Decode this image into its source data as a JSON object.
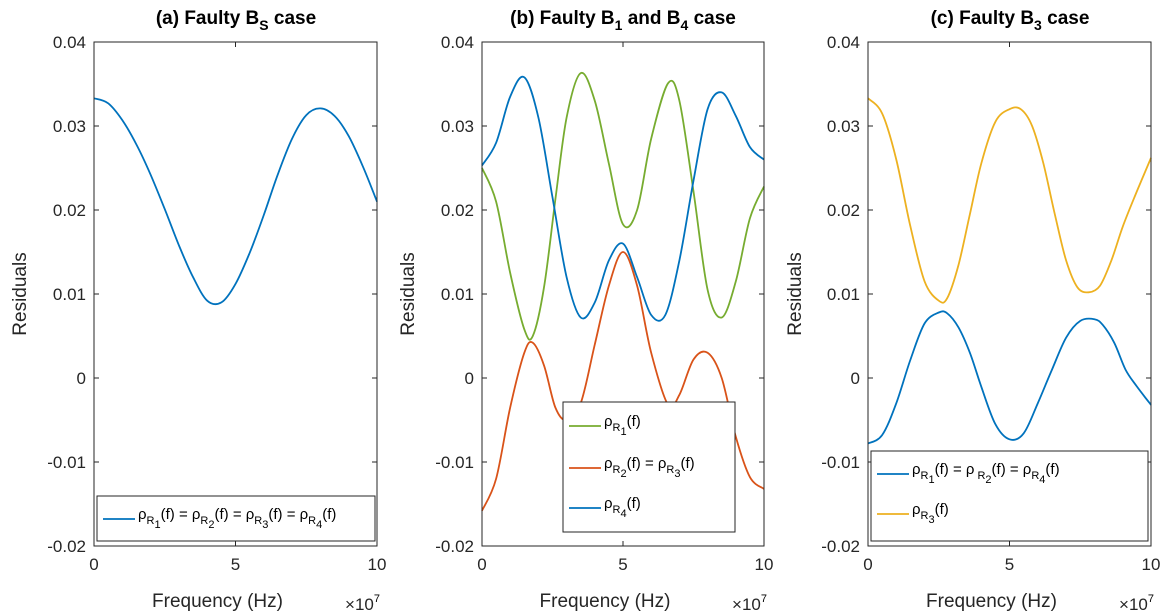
{
  "chart_data": [
    {
      "type": "line",
      "title": "(a) Faulty B_S case",
      "title_parts": [
        "(a) Faulty B",
        "S",
        " case"
      ],
      "xlabel": "Frequency (Hz)",
      "ylabel": "Residuals",
      "x_exponent": "×10",
      "x_exponent_power": "7",
      "xlim": [
        0,
        100000000
      ],
      "ylim": [
        -0.02,
        0.04
      ],
      "xticks": [
        0,
        50000000,
        100000000
      ],
      "xtick_labels": [
        "0",
        "5",
        "10"
      ],
      "yticks": [
        -0.02,
        -0.01,
        0,
        0.01,
        0.02,
        0.03,
        0.04
      ],
      "ytick_labels": [
        "-0.02",
        "-0.01",
        "0",
        "0.01",
        "0.02",
        "0.03",
        "0.04"
      ],
      "grid": false,
      "legend_position": "bottom",
      "series": [
        {
          "name": "ρR1(f) = ρR2(f) = ρR3(f) = ρR4(f)",
          "legend_parts": [
            "ρ",
            "R",
            "1",
            "(f) = ρ",
            "R",
            "2",
            "(f) = ρ",
            "R",
            "3",
            "(f) = ρ",
            "R",
            "4",
            "(f)"
          ],
          "color": "#0072BD",
          "x": [
            0,
            5000000,
            10000000,
            15000000,
            20000000,
            25000000,
            30000000,
            35000000,
            40000000,
            45000000,
            50000000,
            55000000,
            60000000,
            65000000,
            70000000,
            75000000,
            80000000,
            85000000,
            90000000,
            95000000,
            100000000
          ],
          "y": [
            0.0333,
            0.0327,
            0.0307,
            0.0278,
            0.0242,
            0.0201,
            0.0158,
            0.012,
            0.0092,
            0.009,
            0.0112,
            0.0149,
            0.0194,
            0.0243,
            0.0285,
            0.0313,
            0.0321,
            0.0312,
            0.0288,
            0.0252,
            0.021
          ]
        }
      ]
    },
    {
      "type": "line",
      "title": "(b) Faulty B_1 and B_4 case",
      "title_parts": [
        "(b) Faulty B",
        "1",
        " and B",
        "4",
        " case"
      ],
      "xlabel": "Frequency (Hz)",
      "ylabel": "Residuals",
      "x_exponent": "×10",
      "x_exponent_power": "7",
      "xlim": [
        0,
        100000000
      ],
      "ylim": [
        -0.02,
        0.04
      ],
      "xticks": [
        0,
        50000000,
        100000000
      ],
      "xtick_labels": [
        "0",
        "5",
        "10"
      ],
      "yticks": [
        -0.02,
        -0.01,
        0,
        0.01,
        0.02,
        0.03,
        0.04
      ],
      "ytick_labels": [
        "-0.02",
        "-0.01",
        "0",
        "0.01",
        "0.02",
        "0.03",
        "0.04"
      ],
      "grid": false,
      "legend_position": "bottom-right",
      "series": [
        {
          "name": "ρR1(f)",
          "legend_parts": [
            "ρ",
            "R",
            "1",
            "(f)"
          ],
          "color": "#77AC30",
          "x": [
            0,
            5000000,
            10000000,
            15000000,
            18000000,
            22000000,
            26000000,
            30000000,
            35000000,
            40000000,
            45000000,
            50000000,
            55000000,
            60000000,
            66000000,
            70000000,
            75000000,
            80000000,
            85000000,
            90000000,
            95000000,
            100000000
          ],
          "y": [
            0.025,
            0.021,
            0.0125,
            0.0058,
            0.005,
            0.0108,
            0.0212,
            0.031,
            0.0363,
            0.033,
            0.0255,
            0.0183,
            0.02,
            0.0285,
            0.0351,
            0.033,
            0.0222,
            0.0105,
            0.0072,
            0.0115,
            0.019,
            0.0228
          ]
        },
        {
          "name": "ρR2(f) = ρR3(f)",
          "legend_parts": [
            "ρ",
            "R",
            "2",
            "(f) =  ρ",
            "R",
            "3",
            "(f)"
          ],
          "color": "#D95319",
          "x": [
            0,
            5000000,
            10000000,
            15000000,
            18000000,
            22000000,
            26000000,
            30000000,
            35000000,
            40000000,
            45000000,
            50000000,
            55000000,
            60000000,
            66000000,
            70000000,
            75000000,
            80000000,
            85000000,
            90000000,
            95000000,
            100000000
          ],
          "y": [
            -0.0158,
            -0.012,
            -0.0035,
            0.003,
            0.0042,
            0.0015,
            -0.0035,
            -0.005,
            -0.003,
            0.004,
            0.011,
            0.015,
            0.011,
            0.003,
            -0.0032,
            -0.002,
            0.0022,
            0.003,
            0.0,
            -0.007,
            -0.0118,
            -0.0132
          ]
        },
        {
          "name": "ρR4(f)",
          "legend_parts": [
            "ρ",
            "R",
            "4",
            "(f)"
          ],
          "color": "#0072BD",
          "x": [
            0,
            5000000,
            10000000,
            15000000,
            20000000,
            25000000,
            30000000,
            35000000,
            40000000,
            45000000,
            50000000,
            55000000,
            60000000,
            65000000,
            70000000,
            75000000,
            80000000,
            85000000,
            90000000,
            95000000,
            100000000
          ],
          "y": [
            0.0253,
            0.028,
            0.0335,
            0.0358,
            0.031,
            0.0215,
            0.012,
            0.0072,
            0.009,
            0.014,
            0.016,
            0.012,
            0.0075,
            0.0075,
            0.014,
            0.0235,
            0.032,
            0.034,
            0.0312,
            0.0275,
            0.026
          ]
        }
      ]
    },
    {
      "type": "line",
      "title": "(c) Faulty B_3 case",
      "title_parts": [
        "(c) Faulty B",
        "3",
        " case"
      ],
      "xlabel": "Frequency (Hz)",
      "ylabel": "Residuals",
      "x_exponent": "×10",
      "x_exponent_power": "7",
      "xlim": [
        0,
        100000000
      ],
      "ylim": [
        -0.02,
        0.04
      ],
      "xticks": [
        0,
        50000000,
        100000000
      ],
      "xtick_labels": [
        "0",
        "5",
        "10"
      ],
      "yticks": [
        -0.02,
        -0.01,
        0,
        0.01,
        0.02,
        0.03,
        0.04
      ],
      "ytick_labels": [
        "-0.02",
        "-0.01",
        "0",
        "0.01",
        "0.02",
        "0.03",
        "0.04"
      ],
      "grid": false,
      "legend_position": "bottom",
      "series": [
        {
          "name": "ρR1(f) = ρR2(f) = ρR4(f)",
          "legend_parts": [
            "ρ",
            "R",
            "1",
            "(f) =  ρ",
            " R",
            "2",
            "(f) = ρ",
            "R",
            "4",
            "(f)"
          ],
          "color": "#0072BD",
          "x": [
            0,
            5000000,
            10000000,
            15000000,
            20000000,
            25000000,
            28000000,
            32000000,
            36000000,
            40000000,
            45000000,
            50000000,
            55000000,
            60000000,
            65000000,
            70000000,
            75000000,
            80000000,
            83000000,
            87000000,
            91000000,
            95000000,
            100000000
          ],
          "y": [
            -0.0078,
            -0.0068,
            -0.003,
            0.0022,
            0.0065,
            0.0078,
            0.0077,
            0.006,
            0.003,
            -0.001,
            -0.0055,
            -0.0073,
            -0.0066,
            -0.003,
            0.001,
            0.0048,
            0.0068,
            0.007,
            0.0063,
            0.0042,
            0.001,
            -0.001,
            -0.0032
          ]
        },
        {
          "name": "ρR3(f)",
          "legend_parts": [
            "ρ",
            "R",
            "3",
            "(f)"
          ],
          "color": "#EDB120",
          "x": [
            0,
            5000000,
            10000000,
            15000000,
            20000000,
            25000000,
            28000000,
            32000000,
            36000000,
            40000000,
            45000000,
            50000000,
            54000000,
            58000000,
            62000000,
            66000000,
            70000000,
            74000000,
            78000000,
            82000000,
            86000000,
            90000000,
            95000000,
            100000000
          ],
          "y": [
            0.0333,
            0.0315,
            0.026,
            0.018,
            0.0115,
            0.0092,
            0.0095,
            0.0135,
            0.0195,
            0.0255,
            0.0305,
            0.032,
            0.032,
            0.03,
            0.0255,
            0.0195,
            0.014,
            0.0108,
            0.0102,
            0.011,
            0.014,
            0.018,
            0.0222,
            0.0262
          ]
        }
      ]
    }
  ]
}
